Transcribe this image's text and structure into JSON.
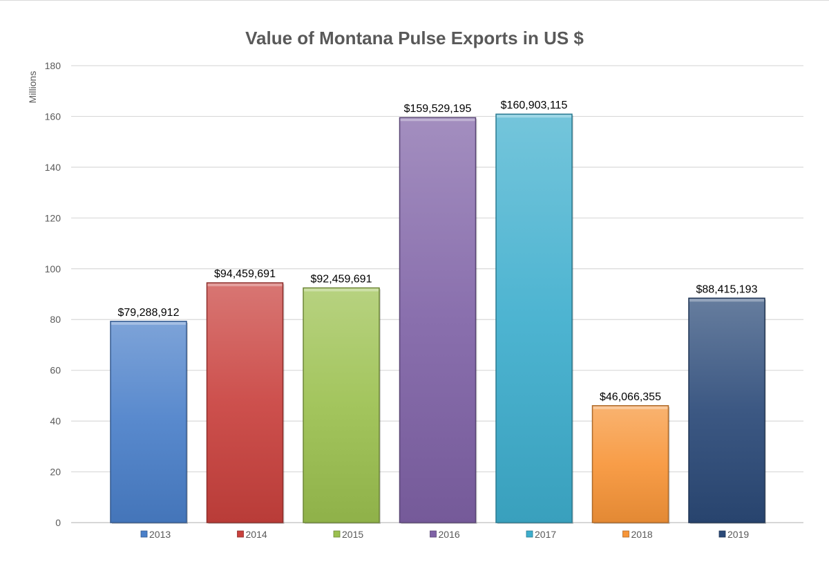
{
  "chart_data": {
    "type": "bar",
    "title": "Value of Montana Pulse Exports in US $",
    "ylabel": "Millions",
    "xlabel": "",
    "ylim": [
      0,
      180
    ],
    "yticks": [
      "0",
      "20",
      "40",
      "60",
      "80",
      "100",
      "120",
      "140",
      "160",
      "180"
    ],
    "ytick_values": [
      0,
      20,
      40,
      60,
      80,
      100,
      120,
      140,
      160,
      180
    ],
    "grid": true,
    "legend_position": "bottom",
    "categories": [
      "2013",
      "2014",
      "2015",
      "2016",
      "2017",
      "2018",
      "2019"
    ],
    "values": [
      79.288912,
      94.459691,
      92.459691,
      159.529195,
      160.903115,
      46.066355,
      88.415193
    ],
    "data_labels": [
      "$79,288,912",
      "$94,459,691",
      "$92,459,691",
      "$159,529,195",
      "$160,903,115",
      "$46,066,355",
      "$88,415,193"
    ],
    "colors": [
      "#4a7fc9",
      "#c9413d",
      "#9bc04f",
      "#7f62a6",
      "#3eaecd",
      "#f79538",
      "#2b4a78"
    ]
  }
}
